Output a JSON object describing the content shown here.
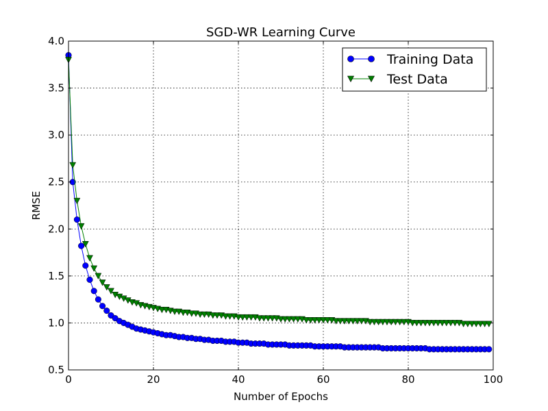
{
  "chart_data": {
    "type": "line",
    "title": "SGD-WR Learning Curve",
    "xlabel": "Number of Epochs",
    "ylabel": "RMSE",
    "xlim": [
      0,
      100
    ],
    "ylim": [
      0.5,
      4.0
    ],
    "x_ticks": [
      "0",
      "20",
      "40",
      "60",
      "80",
      "100"
    ],
    "y_ticks": [
      "0.5",
      "1.0",
      "1.5",
      "2.0",
      "2.5",
      "3.0",
      "3.5",
      "4.0"
    ],
    "grid": true,
    "legend_position": "top-right",
    "series": [
      {
        "name": "Training Data",
        "color": "#0000ff",
        "marker": "circle",
        "values": [
          3.85,
          2.5,
          2.1,
          1.82,
          1.61,
          1.46,
          1.34,
          1.25,
          1.18,
          1.13,
          1.08,
          1.05,
          1.02,
          1.0,
          0.98,
          0.96,
          0.94,
          0.93,
          0.92,
          0.91,
          0.9,
          0.89,
          0.88,
          0.87,
          0.87,
          0.86,
          0.85,
          0.85,
          0.84,
          0.84,
          0.83,
          0.83,
          0.82,
          0.82,
          0.81,
          0.81,
          0.81,
          0.8,
          0.8,
          0.8,
          0.79,
          0.79,
          0.79,
          0.78,
          0.78,
          0.78,
          0.78,
          0.77,
          0.77,
          0.77,
          0.77,
          0.77,
          0.76,
          0.76,
          0.76,
          0.76,
          0.76,
          0.76,
          0.75,
          0.75,
          0.75,
          0.75,
          0.75,
          0.75,
          0.75,
          0.74,
          0.74,
          0.74,
          0.74,
          0.74,
          0.74,
          0.74,
          0.74,
          0.74,
          0.73,
          0.73,
          0.73,
          0.73,
          0.73,
          0.73,
          0.73,
          0.73,
          0.73,
          0.73,
          0.73,
          0.72,
          0.72,
          0.72,
          0.72,
          0.72,
          0.72,
          0.72,
          0.72,
          0.72,
          0.72,
          0.72,
          0.72,
          0.72,
          0.72,
          0.72
        ]
      },
      {
        "name": "Test Data",
        "color": "#008000",
        "marker": "triangle-down",
        "values": [
          3.8,
          2.68,
          2.3,
          2.03,
          1.84,
          1.69,
          1.58,
          1.5,
          1.43,
          1.38,
          1.34,
          1.3,
          1.28,
          1.26,
          1.24,
          1.22,
          1.21,
          1.19,
          1.18,
          1.17,
          1.16,
          1.15,
          1.14,
          1.14,
          1.13,
          1.12,
          1.12,
          1.11,
          1.11,
          1.1,
          1.1,
          1.09,
          1.09,
          1.09,
          1.08,
          1.08,
          1.08,
          1.07,
          1.07,
          1.07,
          1.06,
          1.06,
          1.06,
          1.06,
          1.06,
          1.05,
          1.05,
          1.05,
          1.05,
          1.05,
          1.04,
          1.04,
          1.04,
          1.04,
          1.04,
          1.04,
          1.03,
          1.03,
          1.03,
          1.03,
          1.03,
          1.03,
          1.03,
          1.02,
          1.02,
          1.02,
          1.02,
          1.02,
          1.02,
          1.02,
          1.02,
          1.01,
          1.01,
          1.01,
          1.01,
          1.01,
          1.01,
          1.01,
          1.01,
          1.01,
          1.01,
          1.0,
          1.0,
          1.0,
          1.0,
          1.0,
          1.0,
          1.0,
          1.0,
          1.0,
          1.0,
          1.0,
          1.0,
          0.99,
          0.99,
          0.99,
          0.99,
          0.99,
          0.99,
          0.99
        ]
      }
    ]
  }
}
